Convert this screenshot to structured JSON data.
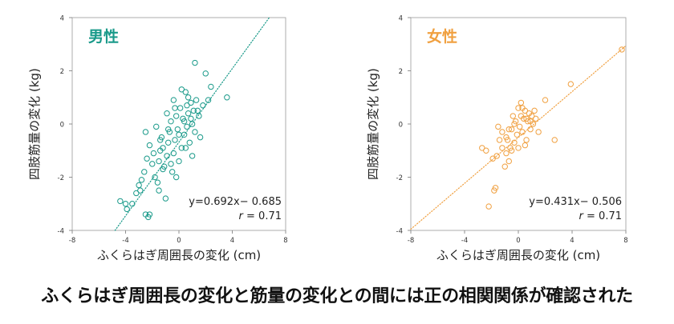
{
  "caption": "ふくらはぎ周囲長の変化と筋量の変化との間には正の相関関係が確認された",
  "chart_data": [
    {
      "type": "scatter",
      "title": "男性",
      "color": "#1a9a8a",
      "xlabel": "ふくらはぎ周囲長の変化 (cm)",
      "ylabel": "四肢筋量の変化 (kg)",
      "xlim": [
        -8,
        8
      ],
      "ylim": [
        -4,
        4
      ],
      "xticks": [
        "-8",
        "-4",
        "0",
        "4",
        "8"
      ],
      "yticks": [
        "4",
        "2",
        "0",
        "-2",
        "-4"
      ],
      "grid": false,
      "trendline": {
        "slope": 0.692,
        "intercept": -0.685,
        "style": "dotted"
      },
      "equation": "y=0.692x− 0.685",
      "r_label": "r",
      "r_value": " = 0.71",
      "points": [
        [
          -4.4,
          -2.9
        ],
        [
          -4.0,
          -3.0
        ],
        [
          -3.9,
          -3.2
        ],
        [
          -3.5,
          -3.0
        ],
        [
          -3.2,
          -2.6
        ],
        [
          -3.0,
          -2.3
        ],
        [
          -2.8,
          -2.1
        ],
        [
          -2.5,
          -3.4
        ],
        [
          -2.3,
          -3.5
        ],
        [
          -2.2,
          -3.4
        ],
        [
          -2.6,
          -1.8
        ],
        [
          -2.4,
          -1.3
        ],
        [
          -2.2,
          -0.8
        ],
        [
          -2.5,
          -0.3
        ],
        [
          -2.0,
          -1.5
        ],
        [
          -1.8,
          -2.0
        ],
        [
          -1.6,
          -2.2
        ],
        [
          -1.5,
          -2.5
        ],
        [
          -1.4,
          -1.0
        ],
        [
          -1.3,
          -0.5
        ],
        [
          -1.2,
          -0.9
        ],
        [
          -1.1,
          -1.6
        ],
        [
          -1.0,
          -2.8
        ],
        [
          -0.9,
          -1.2
        ],
        [
          -0.8,
          -0.7
        ],
        [
          -0.7,
          -0.3
        ],
        [
          -0.6,
          0.1
        ],
        [
          -0.5,
          -1.8
        ],
        [
          -0.4,
          -1.1
        ],
        [
          -0.3,
          -0.6
        ],
        [
          -0.2,
          0.3
        ],
        [
          -0.1,
          -0.2
        ],
        [
          0.0,
          -1.4
        ],
        [
          0.1,
          0.6
        ],
        [
          0.2,
          -0.9
        ],
        [
          0.3,
          0.2
        ],
        [
          0.4,
          -0.4
        ],
        [
          0.5,
          1.2
        ],
        [
          0.6,
          -0.1
        ],
        [
          0.7,
          0.4
        ],
        [
          0.8,
          -0.7
        ],
        [
          0.9,
          0.8
        ],
        [
          1.0,
          0.0
        ],
        [
          1.1,
          0.5
        ],
        [
          1.2,
          -0.3
        ],
        [
          1.3,
          0.9
        ],
        [
          1.5,
          0.3
        ],
        [
          1.6,
          -0.5
        ],
        [
          1.8,
          0.7
        ],
        [
          2.0,
          1.9
        ],
        [
          2.2,
          0.9
        ],
        [
          2.4,
          1.4
        ],
        [
          3.6,
          1.0
        ],
        [
          1.2,
          2.3
        ],
        [
          -1.7,
          -0.1
        ],
        [
          -0.9,
          0.4
        ],
        [
          -0.4,
          0.9
        ],
        [
          0.2,
          1.3
        ],
        [
          0.7,
          1.0
        ],
        [
          1.0,
          -1.2
        ],
        [
          -1.5,
          -1.4
        ],
        [
          -0.6,
          -1.5
        ],
        [
          0.5,
          -0.9
        ],
        [
          -0.2,
          -2.0
        ],
        [
          -2.9,
          -2.5
        ],
        [
          -1.9,
          -1.1
        ],
        [
          -1.2,
          -1.7
        ],
        [
          -0.3,
          0.6
        ],
        [
          0.4,
          0.1
        ],
        [
          0.9,
          0.2
        ],
        [
          1.4,
          0.5
        ],
        [
          -0.8,
          -0.2
        ],
        [
          -1.4,
          -0.6
        ],
        [
          0.0,
          -0.4
        ],
        [
          0.6,
          0.7
        ]
      ]
    },
    {
      "type": "scatter",
      "title": "女性",
      "color": "#f0a040",
      "xlabel": "ふくらはぎ周囲長の変化 (cm)",
      "ylabel": "四肢筋量の変化 (kg)",
      "xlim": [
        -8,
        8
      ],
      "ylim": [
        -4,
        4
      ],
      "xticks": [
        "-8",
        "-4",
        "0",
        "4",
        "8"
      ],
      "yticks": [
        "4",
        "2",
        "0",
        "-2",
        "-4"
      ],
      "grid": false,
      "trendline": {
        "slope": 0.431,
        "intercept": -0.506,
        "style": "dotted"
      },
      "equation": "y=0.431x− 0.506",
      "r_label": "r",
      "r_value": " = 0.71",
      "points": [
        [
          -2.7,
          -0.9
        ],
        [
          -2.4,
          -1.0
        ],
        [
          -2.2,
          -3.1
        ],
        [
          -1.8,
          -2.5
        ],
        [
          -1.7,
          -2.4
        ],
        [
          -1.9,
          -1.3
        ],
        [
          -1.6,
          -1.2
        ],
        [
          -1.5,
          -0.1
        ],
        [
          -1.2,
          -0.3
        ],
        [
          -1.0,
          -1.6
        ],
        [
          -0.9,
          -1.1
        ],
        [
          -0.8,
          -0.6
        ],
        [
          -0.7,
          -1.4
        ],
        [
          -0.6,
          -0.9
        ],
        [
          -0.5,
          -0.2
        ],
        [
          -0.4,
          0.3
        ],
        [
          -0.3,
          -0.7
        ],
        [
          -0.2,
          0.1
        ],
        [
          -0.1,
          -0.4
        ],
        [
          0.0,
          0.6
        ],
        [
          0.1,
          -0.1
        ],
        [
          0.2,
          0.8
        ],
        [
          0.3,
          -0.3
        ],
        [
          0.4,
          0.2
        ],
        [
          0.5,
          0.5
        ],
        [
          0.6,
          -0.6
        ],
        [
          0.7,
          0.1
        ],
        [
          0.8,
          0.4
        ],
        [
          0.9,
          -0.2
        ],
        [
          1.0,
          0.3
        ],
        [
          1.1,
          0.0
        ],
        [
          1.3,
          0.2
        ],
        [
          1.5,
          -0.3
        ],
        [
          2.0,
          0.9
        ],
        [
          2.7,
          -0.6
        ],
        [
          3.9,
          1.5
        ],
        [
          7.7,
          2.8
        ],
        [
          -0.9,
          -0.5
        ],
        [
          -0.5,
          -1.0
        ],
        [
          0.2,
          0.3
        ],
        [
          0.5,
          -0.8
        ],
        [
          -1.2,
          -0.9
        ],
        [
          0.9,
          0.1
        ],
        [
          -0.3,
          0.0
        ],
        [
          1.2,
          0.5
        ],
        [
          -0.7,
          -0.2
        ],
        [
          0.0,
          -0.9
        ],
        [
          0.6,
          0.2
        ],
        [
          -1.4,
          -0.6
        ],
        [
          0.3,
          0.6
        ]
      ]
    }
  ]
}
